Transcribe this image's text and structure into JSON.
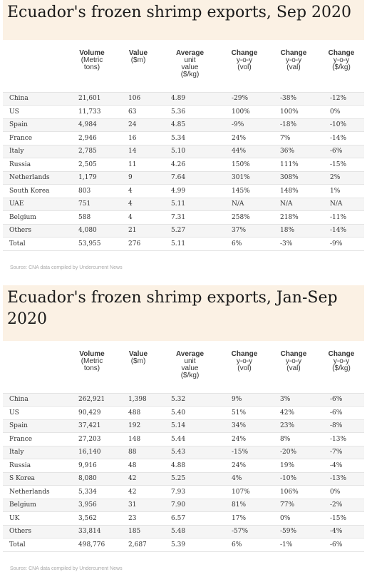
{
  "tables": [
    {
      "title": "Ecuador's frozen shrimp exports, Sep 2020",
      "headers": [
        {
          "main": "",
          "sub": []
        },
        {
          "main": "Volume",
          "sub": [
            "(Metric",
            "tons)"
          ]
        },
        {
          "main": "Value",
          "sub": [
            "($m)"
          ]
        },
        {
          "main": "Average",
          "sub": [
            "unit",
            "value",
            "($/kg)"
          ]
        },
        {
          "main": "Change",
          "sub": [
            "y-o-y",
            "(vol)"
          ]
        },
        {
          "main": "Change",
          "sub": [
            "y-o-y",
            "(val)"
          ]
        },
        {
          "main": "Change",
          "sub": [
            "y-o-y",
            "($/kg)"
          ]
        }
      ],
      "rows": [
        [
          "China",
          "21,601",
          "106",
          "4.89",
          "-29%",
          "-38%",
          "-12%"
        ],
        [
          "US",
          "11,733",
          "63",
          "5.36",
          "100%",
          "100%",
          "0%"
        ],
        [
          "Spain",
          "4,984",
          "24",
          "4.85",
          "-9%",
          "-18%",
          "-10%"
        ],
        [
          "France",
          "2,946",
          "16",
          "5.34",
          "24%",
          "7%",
          "-14%"
        ],
        [
          "Italy",
          "2,785",
          "14",
          "5.10",
          "44%",
          "36%",
          "-6%"
        ],
        [
          "Russia",
          "2,505",
          "11",
          "4.26",
          "150%",
          "111%",
          "-15%"
        ],
        [
          "Netherlands",
          "1,179",
          "9",
          "7.64",
          "301%",
          "308%",
          "2%"
        ],
        [
          "South Korea",
          "803",
          "4",
          "4.99",
          "145%",
          "148%",
          "1%"
        ],
        [
          "UAE",
          "751",
          "4",
          "5.11",
          "N/A",
          "N/A",
          "N/A"
        ],
        [
          "Belgium",
          "588",
          "4",
          "7.31",
          "258%",
          "218%",
          "-11%"
        ],
        [
          "Others",
          "4,080",
          "21",
          "5.27",
          "37%",
          "18%",
          "-14%"
        ],
        [
          "Total",
          "53,955",
          "276",
          "5.11",
          "6%",
          "-3%",
          "-9%"
        ]
      ],
      "source": "Source: CNA data compiled by Undercurrent News"
    },
    {
      "title": "Ecuador's frozen shrimp exports, Jan-Sep 2020",
      "headers": [
        {
          "main": "",
          "sub": []
        },
        {
          "main": "Volume",
          "sub": [
            "(Metric",
            "tons)"
          ]
        },
        {
          "main": "Value",
          "sub": [
            "($m)"
          ]
        },
        {
          "main": "Average",
          "sub": [
            "unit",
            "value",
            "($/kg)"
          ]
        },
        {
          "main": "Change",
          "sub": [
            "y-o-y",
            "(vol)"
          ]
        },
        {
          "main": "Change",
          "sub": [
            "y-o-y",
            "(val)"
          ]
        },
        {
          "main": "Change",
          "sub": [
            "y-o-y",
            "($/kg)"
          ]
        }
      ],
      "rows": [
        [
          "China",
          "262,921",
          "1,398",
          "5.32",
          "9%",
          "3%",
          "-6%"
        ],
        [
          "US",
          "90,429",
          "488",
          "5.40",
          "51%",
          "42%",
          "-6%"
        ],
        [
          "Spain",
          "37,421",
          "192",
          "5.14",
          "34%",
          "23%",
          "-8%"
        ],
        [
          "France",
          "27,203",
          "148",
          "5.44",
          "24%",
          "8%",
          "-13%"
        ],
        [
          "Italy",
          "16,140",
          "88",
          "5.43",
          "-15%",
          "-20%",
          "-7%"
        ],
        [
          "Russia",
          "9,916",
          "48",
          "4.88",
          "24%",
          "19%",
          "-4%"
        ],
        [
          "S Korea",
          "8,080",
          "42",
          "5.25",
          "4%",
          "-10%",
          "-13%"
        ],
        [
          "Netherlands",
          "5,334",
          "42",
          "7.93",
          "107%",
          "106%",
          "0%"
        ],
        [
          "Belgium",
          "3,956",
          "31",
          "7.90",
          "81%",
          "77%",
          "-2%"
        ],
        [
          "UK",
          "3,562",
          "23",
          "6.57",
          "17%",
          "0%",
          "-15%"
        ],
        [
          "Others",
          "33,814",
          "185",
          "5.48",
          "-57%",
          "-59%",
          "-4%"
        ],
        [
          "Total",
          "498,776",
          "2,687",
          "5.39",
          "6%",
          "-1%",
          "-6%"
        ]
      ],
      "source": "Source: CNA data compiled by Undercurrent News"
    }
  ]
}
